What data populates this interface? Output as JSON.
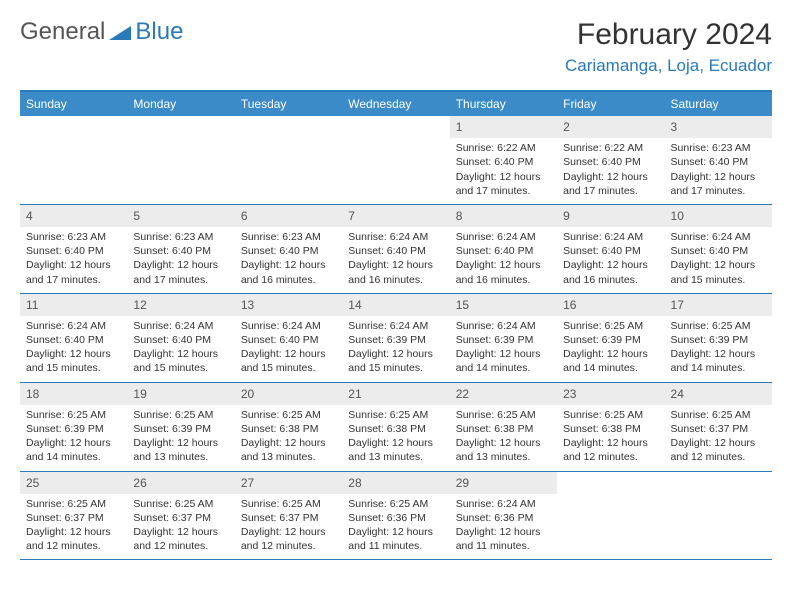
{
  "brand": {
    "part1": "General",
    "part2": "Blue"
  },
  "title": "February 2024",
  "location": "Cariamanga, Loja, Ecuador",
  "colors": {
    "accent": "#2a7ab9",
    "header_bg": "#3b8bc9",
    "daynum_bg": "#ececec",
    "text": "#333333",
    "muted": "#555555"
  },
  "weekdays": [
    "Sunday",
    "Monday",
    "Tuesday",
    "Wednesday",
    "Thursday",
    "Friday",
    "Saturday"
  ],
  "weeks": [
    [
      {
        "n": "",
        "empty": true
      },
      {
        "n": "",
        "empty": true
      },
      {
        "n": "",
        "empty": true
      },
      {
        "n": "",
        "empty": true
      },
      {
        "n": "1",
        "sr": "Sunrise: 6:22 AM",
        "ss": "Sunset: 6:40 PM",
        "d1": "Daylight: 12 hours",
        "d2": "and 17 minutes."
      },
      {
        "n": "2",
        "sr": "Sunrise: 6:22 AM",
        "ss": "Sunset: 6:40 PM",
        "d1": "Daylight: 12 hours",
        "d2": "and 17 minutes."
      },
      {
        "n": "3",
        "sr": "Sunrise: 6:23 AM",
        "ss": "Sunset: 6:40 PM",
        "d1": "Daylight: 12 hours",
        "d2": "and 17 minutes."
      }
    ],
    [
      {
        "n": "4",
        "sr": "Sunrise: 6:23 AM",
        "ss": "Sunset: 6:40 PM",
        "d1": "Daylight: 12 hours",
        "d2": "and 17 minutes."
      },
      {
        "n": "5",
        "sr": "Sunrise: 6:23 AM",
        "ss": "Sunset: 6:40 PM",
        "d1": "Daylight: 12 hours",
        "d2": "and 17 minutes."
      },
      {
        "n": "6",
        "sr": "Sunrise: 6:23 AM",
        "ss": "Sunset: 6:40 PM",
        "d1": "Daylight: 12 hours",
        "d2": "and 16 minutes."
      },
      {
        "n": "7",
        "sr": "Sunrise: 6:24 AM",
        "ss": "Sunset: 6:40 PM",
        "d1": "Daylight: 12 hours",
        "d2": "and 16 minutes."
      },
      {
        "n": "8",
        "sr": "Sunrise: 6:24 AM",
        "ss": "Sunset: 6:40 PM",
        "d1": "Daylight: 12 hours",
        "d2": "and 16 minutes."
      },
      {
        "n": "9",
        "sr": "Sunrise: 6:24 AM",
        "ss": "Sunset: 6:40 PM",
        "d1": "Daylight: 12 hours",
        "d2": "and 16 minutes."
      },
      {
        "n": "10",
        "sr": "Sunrise: 6:24 AM",
        "ss": "Sunset: 6:40 PM",
        "d1": "Daylight: 12 hours",
        "d2": "and 15 minutes."
      }
    ],
    [
      {
        "n": "11",
        "sr": "Sunrise: 6:24 AM",
        "ss": "Sunset: 6:40 PM",
        "d1": "Daylight: 12 hours",
        "d2": "and 15 minutes."
      },
      {
        "n": "12",
        "sr": "Sunrise: 6:24 AM",
        "ss": "Sunset: 6:40 PM",
        "d1": "Daylight: 12 hours",
        "d2": "and 15 minutes."
      },
      {
        "n": "13",
        "sr": "Sunrise: 6:24 AM",
        "ss": "Sunset: 6:40 PM",
        "d1": "Daylight: 12 hours",
        "d2": "and 15 minutes."
      },
      {
        "n": "14",
        "sr": "Sunrise: 6:24 AM",
        "ss": "Sunset: 6:39 PM",
        "d1": "Daylight: 12 hours",
        "d2": "and 15 minutes."
      },
      {
        "n": "15",
        "sr": "Sunrise: 6:24 AM",
        "ss": "Sunset: 6:39 PM",
        "d1": "Daylight: 12 hours",
        "d2": "and 14 minutes."
      },
      {
        "n": "16",
        "sr": "Sunrise: 6:25 AM",
        "ss": "Sunset: 6:39 PM",
        "d1": "Daylight: 12 hours",
        "d2": "and 14 minutes."
      },
      {
        "n": "17",
        "sr": "Sunrise: 6:25 AM",
        "ss": "Sunset: 6:39 PM",
        "d1": "Daylight: 12 hours",
        "d2": "and 14 minutes."
      }
    ],
    [
      {
        "n": "18",
        "sr": "Sunrise: 6:25 AM",
        "ss": "Sunset: 6:39 PM",
        "d1": "Daylight: 12 hours",
        "d2": "and 14 minutes."
      },
      {
        "n": "19",
        "sr": "Sunrise: 6:25 AM",
        "ss": "Sunset: 6:39 PM",
        "d1": "Daylight: 12 hours",
        "d2": "and 13 minutes."
      },
      {
        "n": "20",
        "sr": "Sunrise: 6:25 AM",
        "ss": "Sunset: 6:38 PM",
        "d1": "Daylight: 12 hours",
        "d2": "and 13 minutes."
      },
      {
        "n": "21",
        "sr": "Sunrise: 6:25 AM",
        "ss": "Sunset: 6:38 PM",
        "d1": "Daylight: 12 hours",
        "d2": "and 13 minutes."
      },
      {
        "n": "22",
        "sr": "Sunrise: 6:25 AM",
        "ss": "Sunset: 6:38 PM",
        "d1": "Daylight: 12 hours",
        "d2": "and 13 minutes."
      },
      {
        "n": "23",
        "sr": "Sunrise: 6:25 AM",
        "ss": "Sunset: 6:38 PM",
        "d1": "Daylight: 12 hours",
        "d2": "and 12 minutes."
      },
      {
        "n": "24",
        "sr": "Sunrise: 6:25 AM",
        "ss": "Sunset: 6:37 PM",
        "d1": "Daylight: 12 hours",
        "d2": "and 12 minutes."
      }
    ],
    [
      {
        "n": "25",
        "sr": "Sunrise: 6:25 AM",
        "ss": "Sunset: 6:37 PM",
        "d1": "Daylight: 12 hours",
        "d2": "and 12 minutes."
      },
      {
        "n": "26",
        "sr": "Sunrise: 6:25 AM",
        "ss": "Sunset: 6:37 PM",
        "d1": "Daylight: 12 hours",
        "d2": "and 12 minutes."
      },
      {
        "n": "27",
        "sr": "Sunrise: 6:25 AM",
        "ss": "Sunset: 6:37 PM",
        "d1": "Daylight: 12 hours",
        "d2": "and 12 minutes."
      },
      {
        "n": "28",
        "sr": "Sunrise: 6:25 AM",
        "ss": "Sunset: 6:36 PM",
        "d1": "Daylight: 12 hours",
        "d2": "and 11 minutes."
      },
      {
        "n": "29",
        "sr": "Sunrise: 6:24 AM",
        "ss": "Sunset: 6:36 PM",
        "d1": "Daylight: 12 hours",
        "d2": "and 11 minutes."
      },
      {
        "n": "",
        "empty": true
      },
      {
        "n": "",
        "empty": true
      }
    ]
  ]
}
